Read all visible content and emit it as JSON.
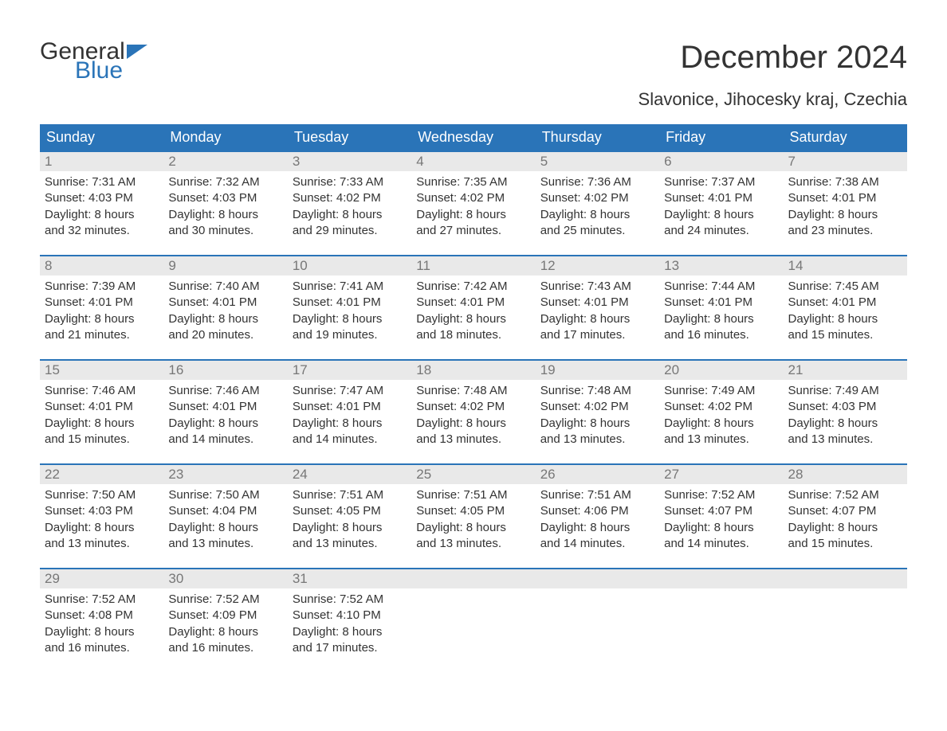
{
  "logo": {
    "line1": "General",
    "line2": "Blue",
    "flag_color": "#2a74b8"
  },
  "title": "December 2024",
  "location": "Slavonice, Jihocesky kraj, Czechia",
  "colors": {
    "header_bg": "#2a74b8",
    "header_text": "#ffffff",
    "daynum_bg": "#e9e9e9",
    "daynum_text": "#777777",
    "body_text": "#333333",
    "row_border": "#2a74b8",
    "page_bg": "#ffffff"
  },
  "typography": {
    "title_fontsize": 40,
    "subtitle_fontsize": 22,
    "weekday_fontsize": 18,
    "daynum_fontsize": 17,
    "content_fontsize": 15,
    "logo_fontsize": 30
  },
  "weekdays": [
    "Sunday",
    "Monday",
    "Tuesday",
    "Wednesday",
    "Thursday",
    "Friday",
    "Saturday"
  ],
  "weeks": [
    [
      {
        "day": "1",
        "sunrise": "Sunrise: 7:31 AM",
        "sunset": "Sunset: 4:03 PM",
        "dl1": "Daylight: 8 hours",
        "dl2": "and 32 minutes."
      },
      {
        "day": "2",
        "sunrise": "Sunrise: 7:32 AM",
        "sunset": "Sunset: 4:03 PM",
        "dl1": "Daylight: 8 hours",
        "dl2": "and 30 minutes."
      },
      {
        "day": "3",
        "sunrise": "Sunrise: 7:33 AM",
        "sunset": "Sunset: 4:02 PM",
        "dl1": "Daylight: 8 hours",
        "dl2": "and 29 minutes."
      },
      {
        "day": "4",
        "sunrise": "Sunrise: 7:35 AM",
        "sunset": "Sunset: 4:02 PM",
        "dl1": "Daylight: 8 hours",
        "dl2": "and 27 minutes."
      },
      {
        "day": "5",
        "sunrise": "Sunrise: 7:36 AM",
        "sunset": "Sunset: 4:02 PM",
        "dl1": "Daylight: 8 hours",
        "dl2": "and 25 minutes."
      },
      {
        "day": "6",
        "sunrise": "Sunrise: 7:37 AM",
        "sunset": "Sunset: 4:01 PM",
        "dl1": "Daylight: 8 hours",
        "dl2": "and 24 minutes."
      },
      {
        "day": "7",
        "sunrise": "Sunrise: 7:38 AM",
        "sunset": "Sunset: 4:01 PM",
        "dl1": "Daylight: 8 hours",
        "dl2": "and 23 minutes."
      }
    ],
    [
      {
        "day": "8",
        "sunrise": "Sunrise: 7:39 AM",
        "sunset": "Sunset: 4:01 PM",
        "dl1": "Daylight: 8 hours",
        "dl2": "and 21 minutes."
      },
      {
        "day": "9",
        "sunrise": "Sunrise: 7:40 AM",
        "sunset": "Sunset: 4:01 PM",
        "dl1": "Daylight: 8 hours",
        "dl2": "and 20 minutes."
      },
      {
        "day": "10",
        "sunrise": "Sunrise: 7:41 AM",
        "sunset": "Sunset: 4:01 PM",
        "dl1": "Daylight: 8 hours",
        "dl2": "and 19 minutes."
      },
      {
        "day": "11",
        "sunrise": "Sunrise: 7:42 AM",
        "sunset": "Sunset: 4:01 PM",
        "dl1": "Daylight: 8 hours",
        "dl2": "and 18 minutes."
      },
      {
        "day": "12",
        "sunrise": "Sunrise: 7:43 AM",
        "sunset": "Sunset: 4:01 PM",
        "dl1": "Daylight: 8 hours",
        "dl2": "and 17 minutes."
      },
      {
        "day": "13",
        "sunrise": "Sunrise: 7:44 AM",
        "sunset": "Sunset: 4:01 PM",
        "dl1": "Daylight: 8 hours",
        "dl2": "and 16 minutes."
      },
      {
        "day": "14",
        "sunrise": "Sunrise: 7:45 AM",
        "sunset": "Sunset: 4:01 PM",
        "dl1": "Daylight: 8 hours",
        "dl2": "and 15 minutes."
      }
    ],
    [
      {
        "day": "15",
        "sunrise": "Sunrise: 7:46 AM",
        "sunset": "Sunset: 4:01 PM",
        "dl1": "Daylight: 8 hours",
        "dl2": "and 15 minutes."
      },
      {
        "day": "16",
        "sunrise": "Sunrise: 7:46 AM",
        "sunset": "Sunset: 4:01 PM",
        "dl1": "Daylight: 8 hours",
        "dl2": "and 14 minutes."
      },
      {
        "day": "17",
        "sunrise": "Sunrise: 7:47 AM",
        "sunset": "Sunset: 4:01 PM",
        "dl1": "Daylight: 8 hours",
        "dl2": "and 14 minutes."
      },
      {
        "day": "18",
        "sunrise": "Sunrise: 7:48 AM",
        "sunset": "Sunset: 4:02 PM",
        "dl1": "Daylight: 8 hours",
        "dl2": "and 13 minutes."
      },
      {
        "day": "19",
        "sunrise": "Sunrise: 7:48 AM",
        "sunset": "Sunset: 4:02 PM",
        "dl1": "Daylight: 8 hours",
        "dl2": "and 13 minutes."
      },
      {
        "day": "20",
        "sunrise": "Sunrise: 7:49 AM",
        "sunset": "Sunset: 4:02 PM",
        "dl1": "Daylight: 8 hours",
        "dl2": "and 13 minutes."
      },
      {
        "day": "21",
        "sunrise": "Sunrise: 7:49 AM",
        "sunset": "Sunset: 4:03 PM",
        "dl1": "Daylight: 8 hours",
        "dl2": "and 13 minutes."
      }
    ],
    [
      {
        "day": "22",
        "sunrise": "Sunrise: 7:50 AM",
        "sunset": "Sunset: 4:03 PM",
        "dl1": "Daylight: 8 hours",
        "dl2": "and 13 minutes."
      },
      {
        "day": "23",
        "sunrise": "Sunrise: 7:50 AM",
        "sunset": "Sunset: 4:04 PM",
        "dl1": "Daylight: 8 hours",
        "dl2": "and 13 minutes."
      },
      {
        "day": "24",
        "sunrise": "Sunrise: 7:51 AM",
        "sunset": "Sunset: 4:05 PM",
        "dl1": "Daylight: 8 hours",
        "dl2": "and 13 minutes."
      },
      {
        "day": "25",
        "sunrise": "Sunrise: 7:51 AM",
        "sunset": "Sunset: 4:05 PM",
        "dl1": "Daylight: 8 hours",
        "dl2": "and 13 minutes."
      },
      {
        "day": "26",
        "sunrise": "Sunrise: 7:51 AM",
        "sunset": "Sunset: 4:06 PM",
        "dl1": "Daylight: 8 hours",
        "dl2": "and 14 minutes."
      },
      {
        "day": "27",
        "sunrise": "Sunrise: 7:52 AM",
        "sunset": "Sunset: 4:07 PM",
        "dl1": "Daylight: 8 hours",
        "dl2": "and 14 minutes."
      },
      {
        "day": "28",
        "sunrise": "Sunrise: 7:52 AM",
        "sunset": "Sunset: 4:07 PM",
        "dl1": "Daylight: 8 hours",
        "dl2": "and 15 minutes."
      }
    ],
    [
      {
        "day": "29",
        "sunrise": "Sunrise: 7:52 AM",
        "sunset": "Sunset: 4:08 PM",
        "dl1": "Daylight: 8 hours",
        "dl2": "and 16 minutes."
      },
      {
        "day": "30",
        "sunrise": "Sunrise: 7:52 AM",
        "sunset": "Sunset: 4:09 PM",
        "dl1": "Daylight: 8 hours",
        "dl2": "and 16 minutes."
      },
      {
        "day": "31",
        "sunrise": "Sunrise: 7:52 AM",
        "sunset": "Sunset: 4:10 PM",
        "dl1": "Daylight: 8 hours",
        "dl2": "and 17 minutes."
      },
      null,
      null,
      null,
      null
    ]
  ]
}
